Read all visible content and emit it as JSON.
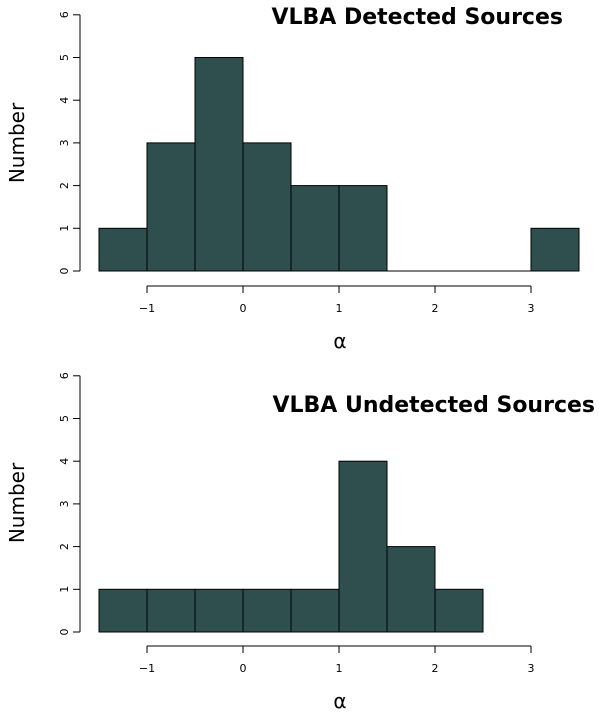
{
  "chart_data": [
    {
      "type": "bar",
      "title": "VLBA Detected Sources",
      "xlabel": "α",
      "ylabel": "Number",
      "bin_edges": [
        -1.5,
        -1.0,
        -0.5,
        0.0,
        0.5,
        1.0,
        1.5,
        2.0,
        2.5,
        3.0,
        3.5
      ],
      "values": [
        1,
        3,
        5,
        3,
        2,
        2,
        0,
        0,
        0,
        1
      ],
      "xlim": [
        -1.5,
        3.5
      ],
      "ylim": [
        0,
        6
      ],
      "x_ticks": [
        -1,
        0,
        1,
        2,
        3
      ],
      "y_ticks": [
        0,
        1,
        2,
        3,
        4,
        5,
        6
      ],
      "bar_color": "#2f4f4f",
      "grid": false,
      "legend": "none"
    },
    {
      "type": "bar",
      "title": "VLBA Undetected Sources",
      "xlabel": "α",
      "ylabel": "Number",
      "bin_edges": [
        -1.5,
        -1.0,
        -0.5,
        0.0,
        0.5,
        1.0,
        1.5,
        2.0,
        2.5
      ],
      "values": [
        1,
        1,
        1,
        1,
        1,
        4,
        2,
        1
      ],
      "xlim": [
        -1.5,
        3.5
      ],
      "ylim": [
        0,
        6
      ],
      "x_ticks": [
        -1,
        0,
        1,
        2,
        3
      ],
      "y_ticks": [
        0,
        1,
        2,
        3,
        4,
        5,
        6
      ],
      "bar_color": "#2f4f4f",
      "grid": false,
      "legend": "none"
    }
  ]
}
